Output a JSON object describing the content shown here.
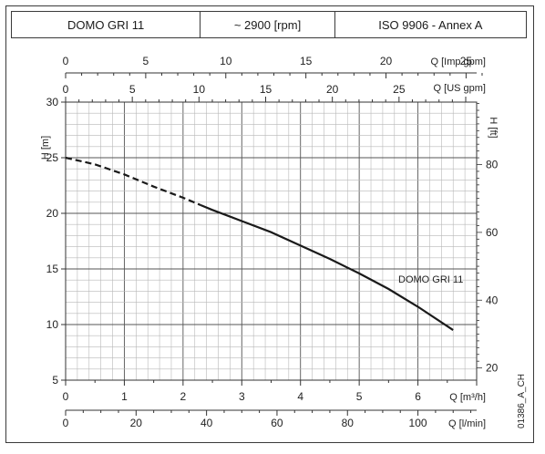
{
  "header": {
    "model": "DOMO GRI 11",
    "speed": "~ 2900 [rpm]",
    "standard": "ISO 9906 - Annex A"
  },
  "chart_data": {
    "type": "line",
    "series": [
      {
        "name": "DOMO GRI 11",
        "x_unit": "m3/h",
        "points": [
          [
            0,
            25.0
          ],
          [
            0.5,
            24.4
          ],
          [
            1,
            23.5
          ],
          [
            1.5,
            22.4
          ],
          [
            2,
            21.4
          ],
          [
            2.5,
            20.3
          ],
          [
            3,
            19.3
          ],
          [
            3.5,
            18.3
          ],
          [
            4,
            17.1
          ],
          [
            4.5,
            15.9
          ],
          [
            5,
            14.6
          ],
          [
            5.5,
            13.2
          ],
          [
            6,
            11.6
          ],
          [
            6.6,
            9.5
          ]
        ],
        "dashed_until_x": 2.3
      }
    ],
    "primary_x": {
      "label": "Q [m³/h]",
      "range": [
        0,
        7
      ],
      "ticks": [
        0,
        1,
        2,
        3,
        4,
        5,
        6
      ]
    },
    "secondary_x_top_imp": {
      "label": "Q [Imp gpm]",
      "ticks": [
        0,
        5,
        10,
        15,
        20,
        25
      ]
    },
    "secondary_x_top_us": {
      "label": "Q [US gpm]",
      "ticks": [
        0,
        5,
        10,
        15,
        20,
        25
      ]
    },
    "secondary_x_bottom": {
      "label": "Q [l/min]",
      "ticks": [
        0,
        20,
        40,
        60,
        80,
        100
      ]
    },
    "y_left": {
      "label": "H [m]",
      "range": [
        5,
        30
      ],
      "ticks": [
        5,
        10,
        15,
        20,
        25,
        30
      ]
    },
    "y_right": {
      "label": "H [ft]",
      "ticks": [
        20,
        40,
        60,
        80
      ]
    },
    "grid": true,
    "curve_label": "DOMO GRI 11",
    "code": "01386_A_CH"
  }
}
